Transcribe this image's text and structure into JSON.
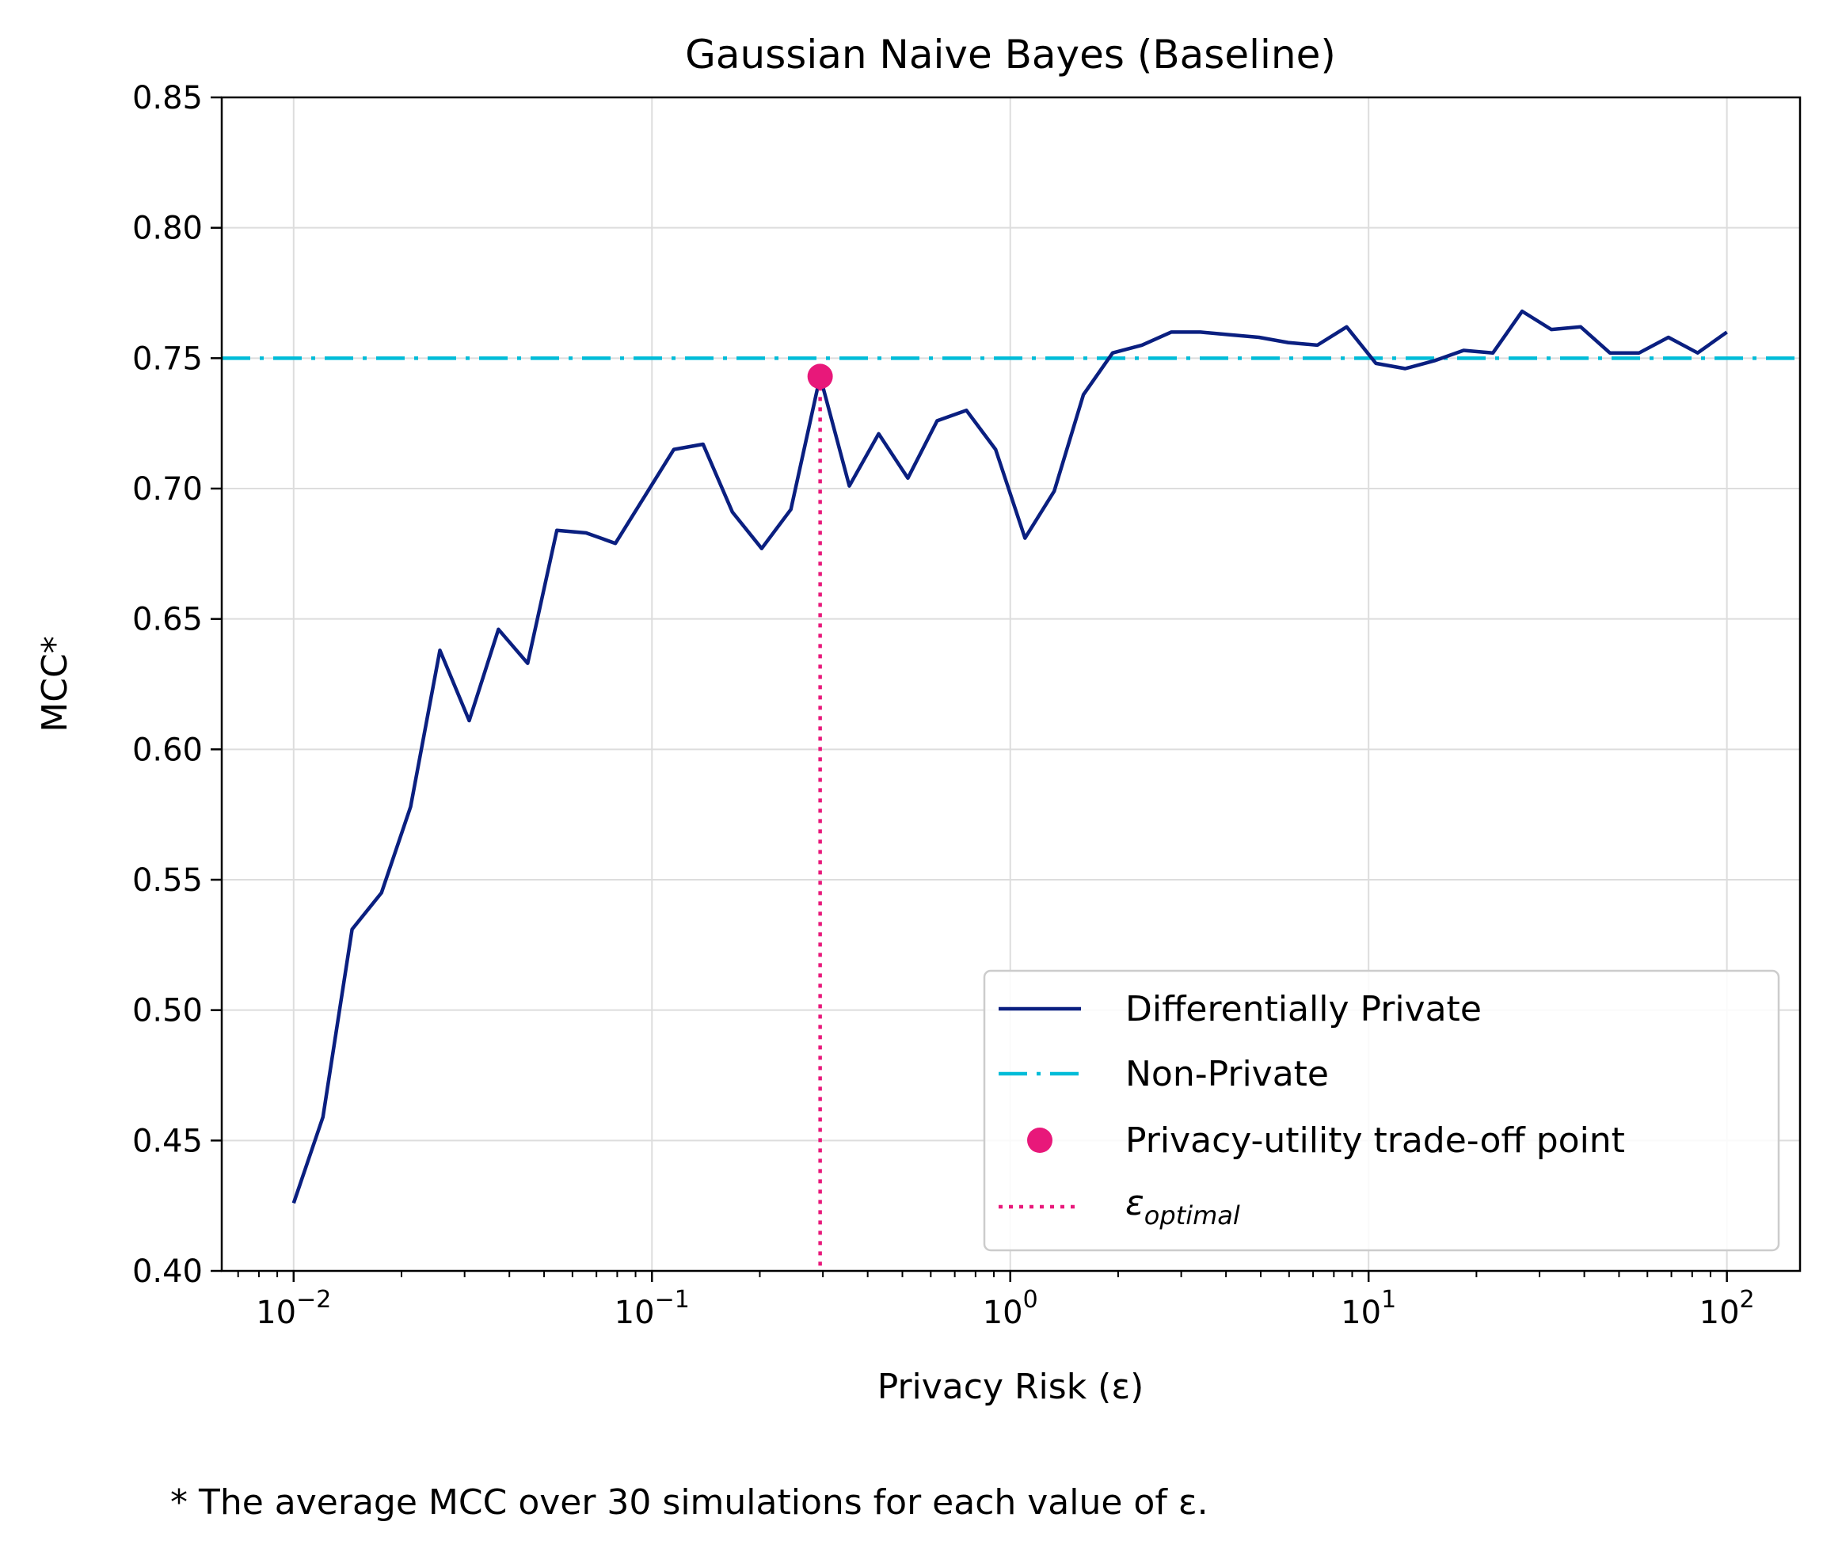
{
  "chart_data": {
    "type": "line",
    "title": "Gaussian Naive Bayes (Baseline)",
    "xlabel": "Privacy Risk (ε)",
    "ylabel": "MCC*",
    "xscale": "log",
    "xlim": [
      0.0063,
      160
    ],
    "ylim": [
      0.4,
      0.85
    ],
    "grid": true,
    "legend_position": "lower-right",
    "yticks": [
      "0.40",
      "0.45",
      "0.50",
      "0.55",
      "0.60",
      "0.65",
      "0.70",
      "0.75",
      "0.80",
      "0.85"
    ],
    "xticks": [
      {
        "value": 0.01,
        "base": "10",
        "exp": "−2"
      },
      {
        "value": 0.1,
        "base": "10",
        "exp": "−1"
      },
      {
        "value": 1,
        "base": "10",
        "exp": "0"
      },
      {
        "value": 10,
        "base": "10",
        "exp": "1"
      },
      {
        "value": 100,
        "base": "10",
        "exp": "2"
      }
    ],
    "series": [
      {
        "name": "Differentially Private",
        "color": "#0a1f80",
        "style": "solid",
        "x": [
          0.01,
          0.01207,
          0.01456,
          0.01758,
          0.02121,
          0.0256,
          0.0309,
          0.03728,
          0.045,
          0.05429,
          0.06551,
          0.07906,
          0.09541,
          0.1151,
          0.1389,
          0.1677,
          0.2024,
          0.2442,
          0.2947,
          0.3556,
          0.4292,
          0.5179,
          0.625,
          0.7543,
          0.9103,
          1.099,
          1.326,
          1.6,
          1.931,
          2.33,
          2.812,
          3.393,
          4.095,
          4.942,
          5.964,
          7.197,
          8.685,
          10.48,
          12.65,
          15.26,
          18.42,
          22.23,
          26.83,
          32.37,
          39.07,
          47.15,
          56.9,
          68.66,
          82.86,
          100
        ],
        "y": [
          0.426,
          0.459,
          0.531,
          0.545,
          0.578,
          0.638,
          0.611,
          0.646,
          0.633,
          0.684,
          0.683,
          0.679,
          0.697,
          0.715,
          0.717,
          0.691,
          0.677,
          0.692,
          0.743,
          0.701,
          0.721,
          0.704,
          0.726,
          0.73,
          0.715,
          0.681,
          0.699,
          0.736,
          0.752,
          0.755,
          0.76,
          0.76,
          0.759,
          0.758,
          0.756,
          0.755,
          0.762,
          0.748,
          0.746,
          0.749,
          0.753,
          0.752,
          0.768,
          0.761,
          0.762,
          0.752,
          0.752,
          0.758,
          0.752,
          0.76
        ]
      },
      {
        "name": "Non-Private",
        "color": "#00bcd8",
        "style": "dashdot",
        "y": 0.75
      },
      {
        "name": "Privacy-utility trade-off point",
        "color": "#e8187a",
        "style": "marker",
        "x": 0.2947,
        "y": 0.743
      },
      {
        "name": "ε",
        "subscript": "optimal",
        "color": "#e8187a",
        "style": "dotted",
        "x": 0.2947
      }
    ],
    "footnote": "* The average MCC over 30 simulations for each value of ε."
  }
}
